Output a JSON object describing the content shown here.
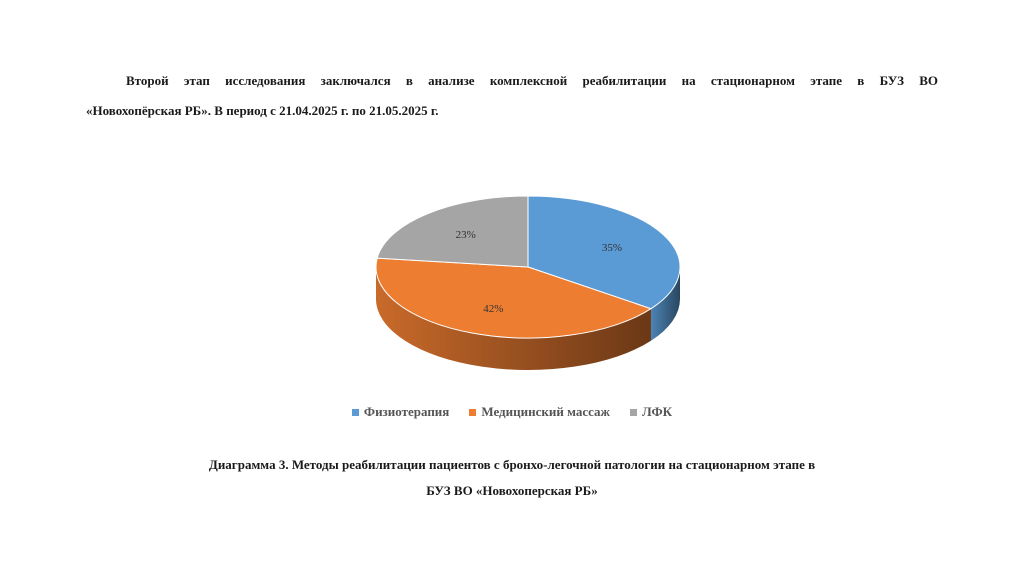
{
  "intro": {
    "line1": "Второй этап исследования заключался в анализе    комплексной реабилитации на стационарном этапе в БУЗ ВО",
    "line2": "«Новохопёрская РБ».   В период с 21.04.2025 г.  по 21.05.2025 г."
  },
  "chart_data": {
    "type": "pie",
    "style": "3d",
    "categories": [
      "Физиотерапия",
      "Медицинский массаж",
      "ЛФК"
    ],
    "values": [
      35,
      42,
      23
    ],
    "data_labels": [
      "35%",
      "42%",
      "23%"
    ],
    "colors": [
      "#5b9bd5",
      "#ed7d31",
      "#a5a5a5"
    ],
    "legend_position": "bottom"
  },
  "caption": {
    "line1": "Диаграмма 3. Методы реабилитации пациентов с бронхо-легочной патологии на стационарном этапе в",
    "line2": "БУЗ ВО «Новохоперская РБ»"
  }
}
